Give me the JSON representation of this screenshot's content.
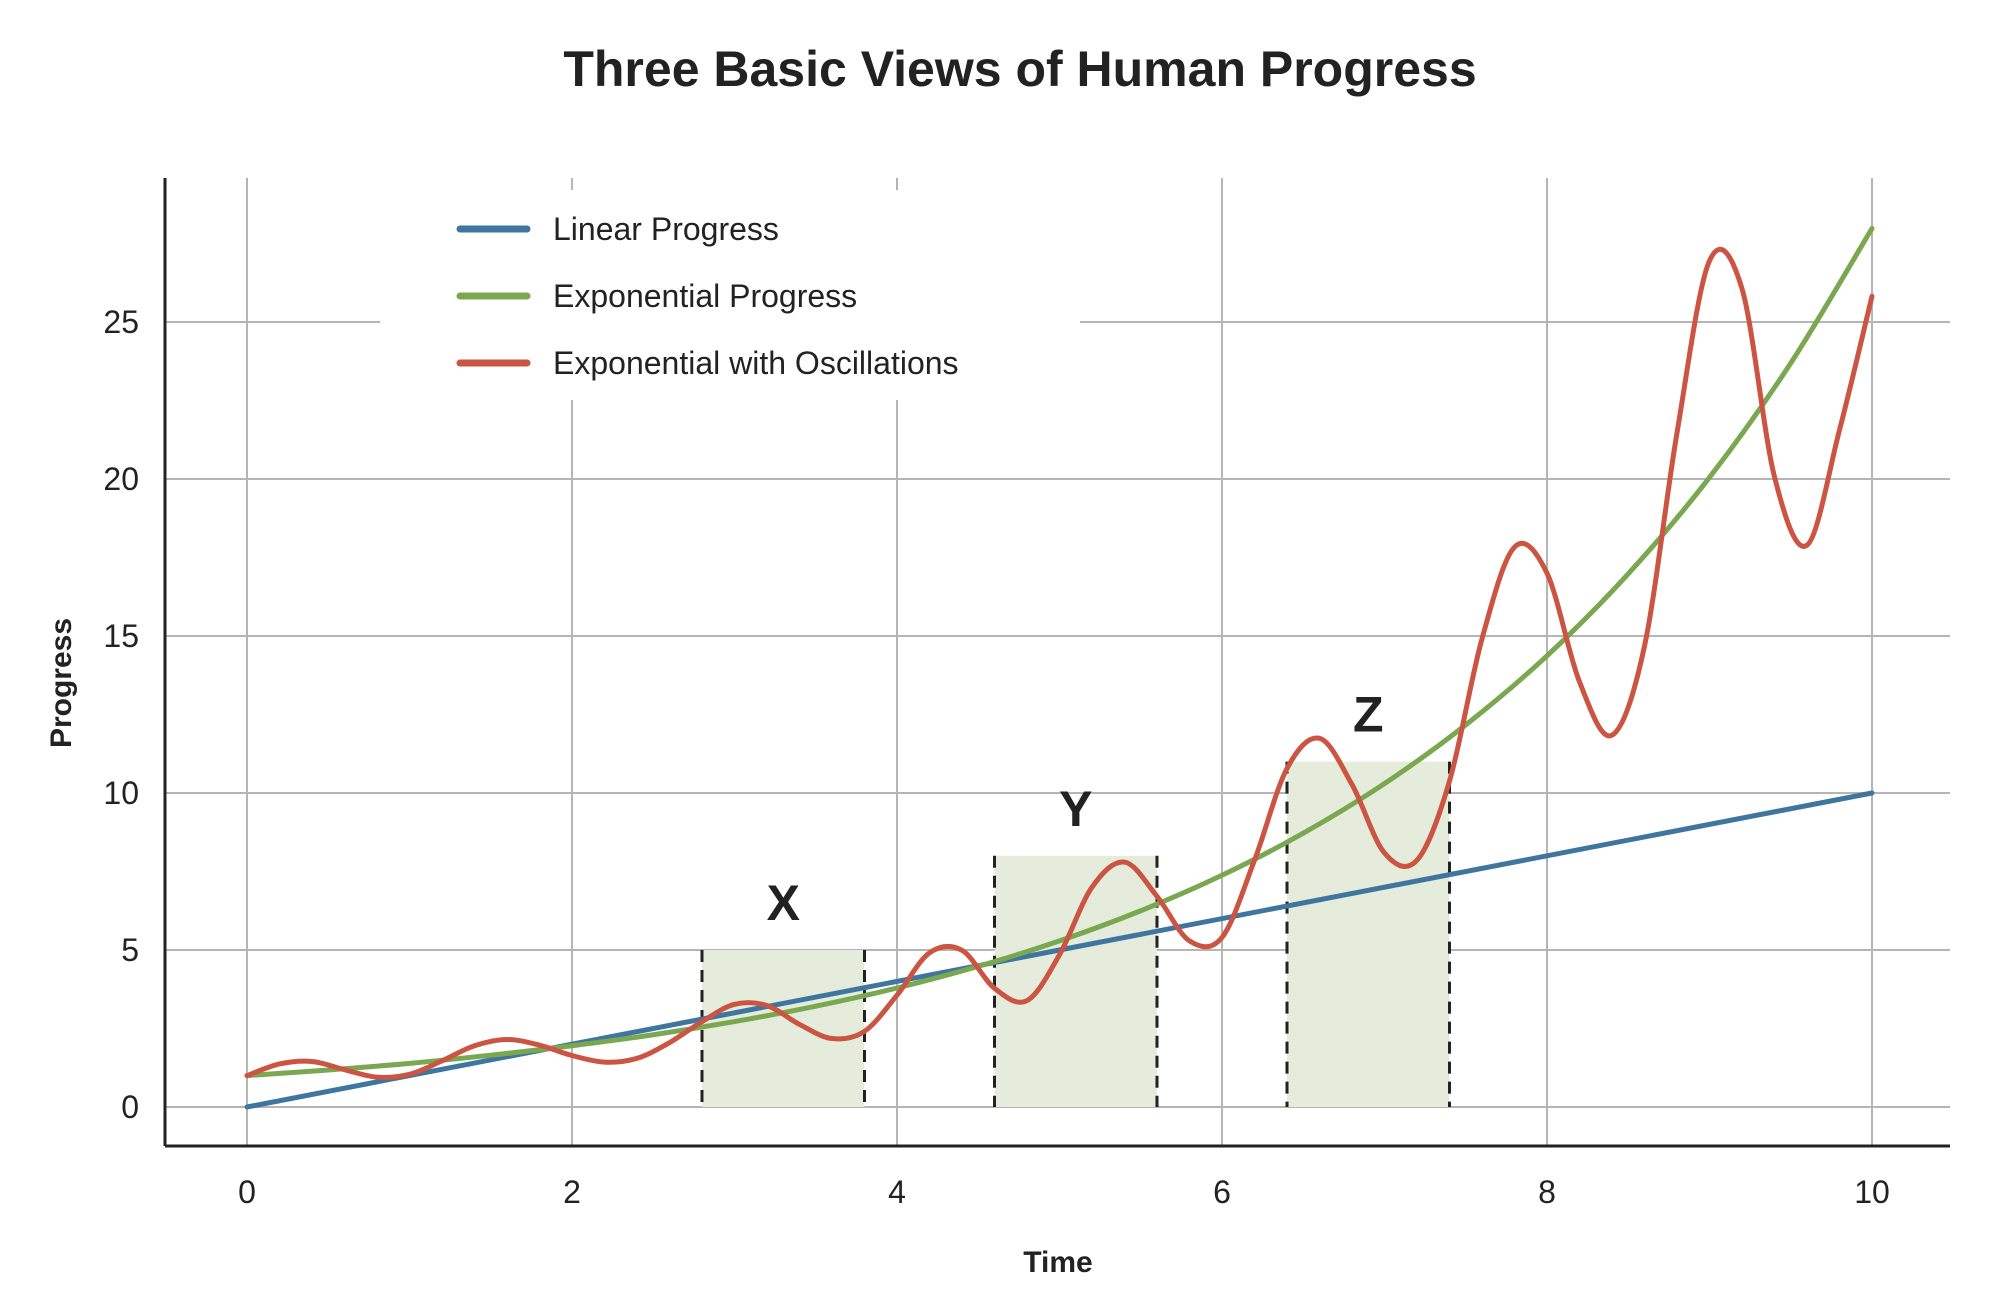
{
  "chart_data": {
    "type": "line",
    "title": "Three Basic Views of Human Progress",
    "xlabel": "Time",
    "ylabel": "Progress",
    "xlim": [
      0,
      10
    ],
    "ylim": [
      0,
      28
    ],
    "x_ticks": [
      0,
      2,
      4,
      6,
      8,
      10
    ],
    "y_ticks": [
      0,
      5,
      10,
      15,
      20,
      25
    ],
    "grid": true,
    "legend_position": "top-left",
    "series": [
      {
        "name": "Linear Progress",
        "color": "#3f76a0",
        "x": [
          0,
          10
        ],
        "y": [
          0,
          10
        ]
      },
      {
        "name": "Exponential Progress",
        "color": "#7aa851",
        "x": [
          0,
          0.5,
          1,
          1.5,
          2,
          2.5,
          3,
          3.5,
          4,
          4.5,
          5,
          5.5,
          6,
          6.5,
          7,
          7.5,
          8,
          8.5,
          9,
          9.5,
          10
        ],
        "y": [
          1.0,
          1.18,
          1.39,
          1.65,
          1.95,
          2.3,
          2.72,
          3.21,
          3.79,
          4.48,
          5.29,
          6.25,
          7.38,
          8.72,
          10.3,
          12.17,
          14.37,
          16.98,
          20.05,
          23.69,
          27.98
        ]
      },
      {
        "name": "Exponential with Oscillations",
        "color": "#cc5442",
        "x": [
          0,
          0.2,
          0.4,
          0.6,
          0.8,
          1.0,
          1.2,
          1.4,
          1.6,
          1.8,
          2.0,
          2.2,
          2.4,
          2.6,
          2.8,
          3.0,
          3.2,
          3.4,
          3.6,
          3.8,
          4.0,
          4.2,
          4.4,
          4.6,
          4.8,
          5.0,
          5.2,
          5.4,
          5.6,
          5.8,
          6.0,
          6.2,
          6.4,
          6.6,
          6.8,
          7.0,
          7.2,
          7.4,
          7.6,
          7.8,
          8.0,
          8.2,
          8.4,
          8.6,
          8.8,
          9.0,
          9.2,
          9.4,
          9.6,
          9.8,
          10.0
        ],
        "y": [
          1.0,
          1.37,
          1.45,
          1.19,
          0.95,
          1.04,
          1.47,
          1.95,
          2.15,
          1.97,
          1.64,
          1.43,
          1.55,
          2.05,
          2.72,
          3.27,
          3.23,
          2.63,
          2.18,
          2.41,
          3.56,
          4.91,
          4.99,
          3.78,
          3.39,
          4.85,
          7.0,
          7.8,
          6.71,
          5.29,
          5.4,
          7.86,
          10.78,
          11.74,
          10.27,
          8.09,
          7.86,
          10.38,
          14.91,
          17.83,
          17.0,
          13.54,
          11.84,
          14.68,
          21.47,
          26.95,
          26.06,
          20.07,
          17.89,
          21.56,
          25.82
        ]
      }
    ],
    "shaded_regions": [
      {
        "label": "X",
        "x_start": 2.8,
        "x_end": 3.8,
        "y_top": 5
      },
      {
        "label": "Y",
        "x_start": 4.6,
        "x_end": 5.6,
        "y_top": 8
      },
      {
        "label": "Z",
        "x_start": 6.4,
        "x_end": 7.4,
        "y_top": 11
      }
    ]
  }
}
